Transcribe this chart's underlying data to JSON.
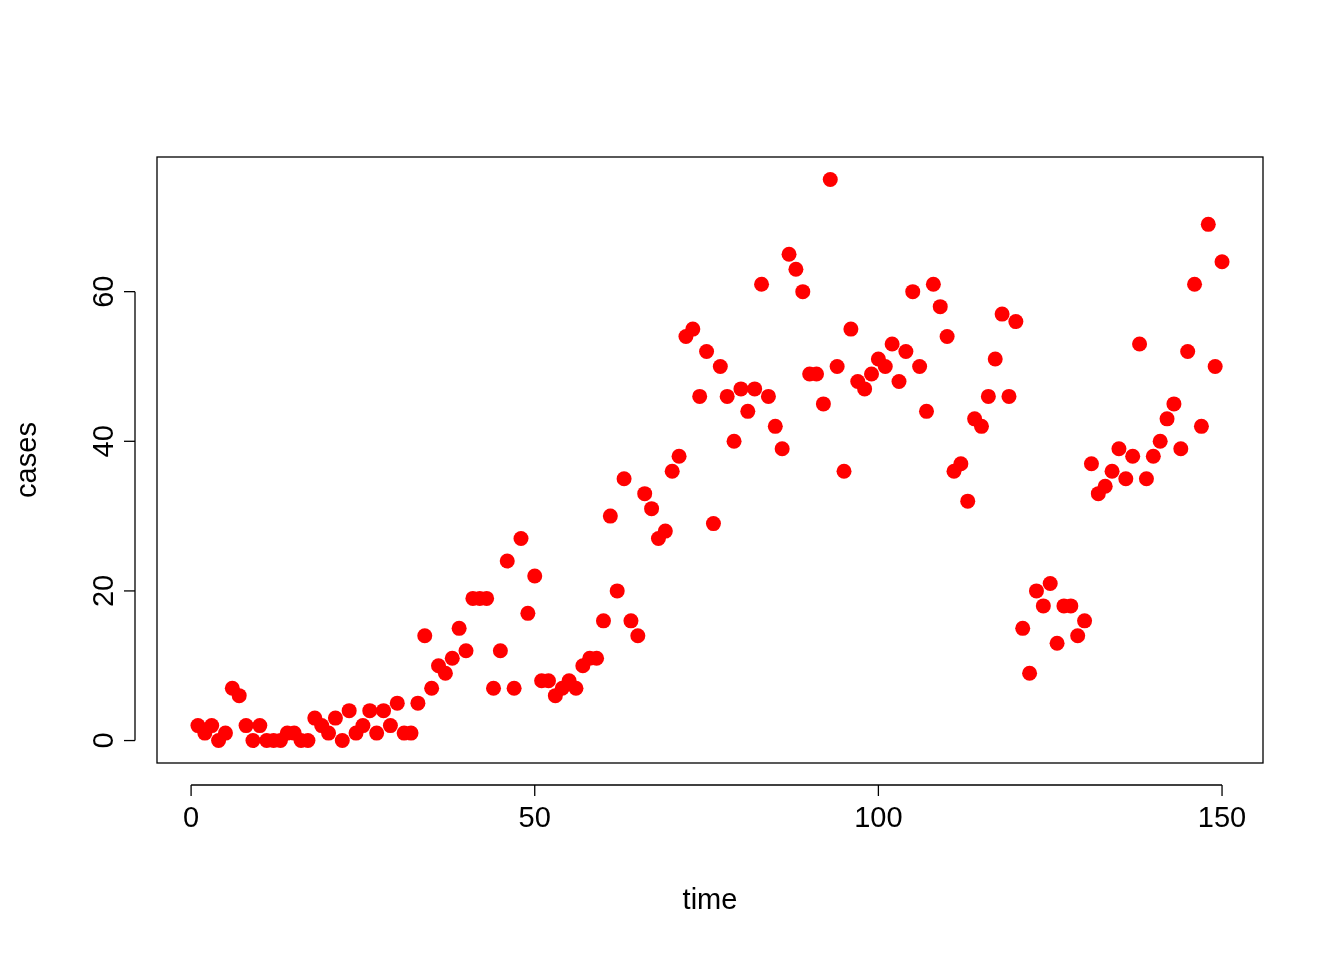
{
  "chart_data": {
    "type": "scatter",
    "xlabel": "time",
    "ylabel": "cases",
    "marker": "circle",
    "color": "#ff0000",
    "xlim": [
      -4.96,
      155.96
    ],
    "ylim": [
      -3,
      78
    ],
    "xticks": [
      0,
      50,
      100,
      150
    ],
    "yticks": [
      0,
      20,
      40,
      60
    ],
    "x": [
      1,
      2,
      3,
      4,
      5,
      6,
      7,
      8,
      9,
      10,
      11,
      12,
      13,
      14,
      15,
      16,
      17,
      18,
      19,
      20,
      21,
      22,
      23,
      24,
      25,
      26,
      27,
      28,
      29,
      30,
      31,
      32,
      33,
      34,
      35,
      36,
      37,
      38,
      39,
      40,
      41,
      42,
      43,
      44,
      45,
      46,
      47,
      48,
      49,
      50,
      51,
      52,
      53,
      54,
      55,
      56,
      57,
      58,
      59,
      60,
      61,
      62,
      63,
      64,
      65,
      66,
      67,
      68,
      69,
      70,
      71,
      72,
      73,
      74,
      75,
      76,
      77,
      78,
      79,
      80,
      81,
      82,
      83,
      84,
      85,
      86,
      87,
      88,
      89,
      90,
      91,
      92,
      93,
      94,
      95,
      96,
      97,
      98,
      99,
      100,
      101,
      102,
      103,
      104,
      105,
      106,
      107,
      108,
      109,
      110,
      111,
      112,
      113,
      114,
      115,
      116,
      117,
      118,
      119,
      120,
      121,
      122,
      123,
      124,
      125,
      126,
      127,
      128,
      129,
      130,
      131,
      132,
      133,
      134,
      135,
      136,
      137,
      138,
      139,
      140,
      141,
      142,
      143,
      144,
      145,
      146,
      147,
      148,
      149,
      150
    ],
    "values": [
      2,
      1,
      2,
      0,
      1,
      7,
      6,
      2,
      0,
      2,
      0,
      0,
      0,
      1,
      1,
      0,
      0,
      3,
      2,
      1,
      3,
      0,
      4,
      1,
      2,
      4,
      1,
      4,
      2,
      5,
      1,
      1,
      5,
      14,
      7,
      10,
      9,
      11,
      15,
      12,
      19,
      19,
      19,
      7,
      12,
      24,
      7,
      27,
      17,
      22,
      8,
      8,
      6,
      7,
      8,
      7,
      10,
      11,
      11,
      16,
      30,
      20,
      35,
      16,
      14,
      33,
      31,
      27,
      28,
      36,
      38,
      54,
      55,
      46,
      52,
      29,
      50,
      46,
      40,
      47,
      44,
      47,
      61,
      46,
      42,
      39,
      65,
      63,
      60,
      49,
      49,
      45,
      75,
      50,
      36,
      55,
      48,
      47,
      49,
      51,
      50,
      53,
      48,
      52,
      60,
      50,
      44,
      61,
      58,
      54,
      36,
      37,
      32,
      43,
      42,
      46,
      51,
      57,
      46,
      56,
      15,
      9,
      20,
      18,
      21,
      13,
      18,
      18,
      14,
      16,
      37,
      33,
      34,
      36,
      39,
      35,
      38,
      53,
      35,
      38,
      40,
      43,
      45,
      39,
      52,
      61,
      42,
      69,
      50,
      64
    ]
  }
}
